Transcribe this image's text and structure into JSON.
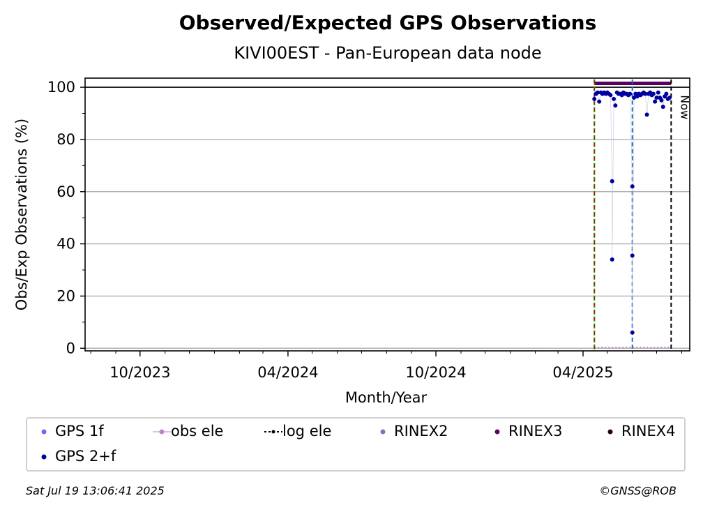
{
  "title": "Observed/Expected GPS Observations",
  "subtitle": "KIVI00EST - Pan-European data node",
  "chart_data": {
    "type": "scatter",
    "title": "Observed/Expected GPS Observations",
    "subtitle": "KIVI00EST - Pan-European data node",
    "xlabel": "Month/Year",
    "ylabel": "Obs/Exp Observations (%)",
    "ylim": [
      -1,
      103.5
    ],
    "xlim": [
      "2023-07-25",
      "2025-08-11"
    ],
    "yticks": [
      0,
      20,
      40,
      60,
      80,
      100
    ],
    "xticks": [
      {
        "date": "2023-10-01",
        "label": "10/2023"
      },
      {
        "date": "2024-04-01",
        "label": "04/2024"
      },
      {
        "date": "2024-10-01",
        "label": "10/2024"
      },
      {
        "date": "2025-04-01",
        "label": "04/2025"
      }
    ],
    "grid": true,
    "now_label": "Now",
    "vertical_lines": [
      {
        "date": "2025-04-15",
        "color": "#cc0000",
        "style": "dashed"
      },
      {
        "date": "2025-04-15",
        "color": "#00aa00",
        "style": "dotted"
      },
      {
        "date": "2025-06-01",
        "color": "#1f6fbf",
        "style": "dashed"
      },
      {
        "date": "2025-07-19",
        "color": "#000000",
        "style": "dashed"
      }
    ],
    "series": [
      {
        "name": "GPS 2+f",
        "color": "#0000a0",
        "points": [
          [
            "2025-04-15",
            95.5
          ],
          [
            "2025-04-17",
            97.5
          ],
          [
            "2025-04-19",
            98.0
          ],
          [
            "2025-04-21",
            94.5
          ],
          [
            "2025-04-23",
            98.0
          ],
          [
            "2025-04-25",
            97.5
          ],
          [
            "2025-04-27",
            98.0
          ],
          [
            "2025-04-29",
            97.5
          ],
          [
            "2025-05-01",
            98.0
          ],
          [
            "2025-05-03",
            97.5
          ],
          [
            "2025-05-05",
            97.0
          ],
          [
            "2025-05-07",
            64.0
          ],
          [
            "2025-05-07",
            34.0
          ],
          [
            "2025-05-09",
            95.5
          ],
          [
            "2025-05-11",
            93.0
          ],
          [
            "2025-05-13",
            98.0
          ],
          [
            "2025-05-15",
            97.5
          ],
          [
            "2025-05-17",
            97.5
          ],
          [
            "2025-05-19",
            97.0
          ],
          [
            "2025-05-21",
            98.0
          ],
          [
            "2025-05-23",
            97.5
          ],
          [
            "2025-05-25",
            97.5
          ],
          [
            "2025-05-27",
            97.0
          ],
          [
            "2025-05-29",
            97.5
          ],
          [
            "2025-06-01",
            62.0
          ],
          [
            "2025-06-01",
            35.5
          ],
          [
            "2025-06-01",
            6.0
          ],
          [
            "2025-06-03",
            96.0
          ],
          [
            "2025-06-05",
            97.5
          ],
          [
            "2025-06-07",
            96.5
          ],
          [
            "2025-06-09",
            97.5
          ],
          [
            "2025-06-11",
            97.0
          ],
          [
            "2025-06-13",
            97.5
          ],
          [
            "2025-06-15",
            98.0
          ],
          [
            "2025-06-17",
            97.5
          ],
          [
            "2025-06-19",
            89.5
          ],
          [
            "2025-06-21",
            97.5
          ],
          [
            "2025-06-23",
            98.0
          ],
          [
            "2025-06-25",
            97.0
          ],
          [
            "2025-06-27",
            97.5
          ],
          [
            "2025-06-29",
            94.5
          ],
          [
            "2025-07-01",
            96.0
          ],
          [
            "2025-07-03",
            98.0
          ],
          [
            "2025-07-05",
            96.0
          ],
          [
            "2025-07-07",
            95.0
          ],
          [
            "2025-07-09",
            92.5
          ],
          [
            "2025-07-11",
            96.5
          ],
          [
            "2025-07-13",
            97.5
          ],
          [
            "2025-07-15",
            95.5
          ],
          [
            "2025-07-17",
            96.0
          ]
        ]
      },
      {
        "name": "RINEX3",
        "color": "#5a0060",
        "band": {
          "from": "2025-04-15",
          "to": "2025-07-19",
          "y": 101.5
        }
      },
      {
        "name": "obs ele",
        "color": "#c080d0",
        "band": {
          "from": "2025-04-15",
          "to": "2025-07-19",
          "y": 0.3
        }
      }
    ],
    "legend_placement": "bottom",
    "legend": [
      {
        "label": "GPS 1f",
        "color": "#6a6aff",
        "marker": "dot"
      },
      {
        "label": "obs ele",
        "color": "#c080d0",
        "marker": "dot-line"
      },
      {
        "label": "log ele",
        "color": "#000000",
        "marker": "dash-dot"
      },
      {
        "label": "RINEX2",
        "color": "#8070c0",
        "marker": "dot"
      },
      {
        "label": "RINEX3",
        "color": "#6a0060",
        "marker": "dot"
      },
      {
        "label": "RINEX4",
        "color": "#2a0020",
        "marker": "dot"
      },
      {
        "label": "GPS 2+f",
        "color": "#0000a0",
        "marker": "dot"
      }
    ]
  },
  "footer": {
    "timestamp": "Sat Jul 19 13:06:41 2025",
    "credit": "©GNSS@ROB"
  }
}
